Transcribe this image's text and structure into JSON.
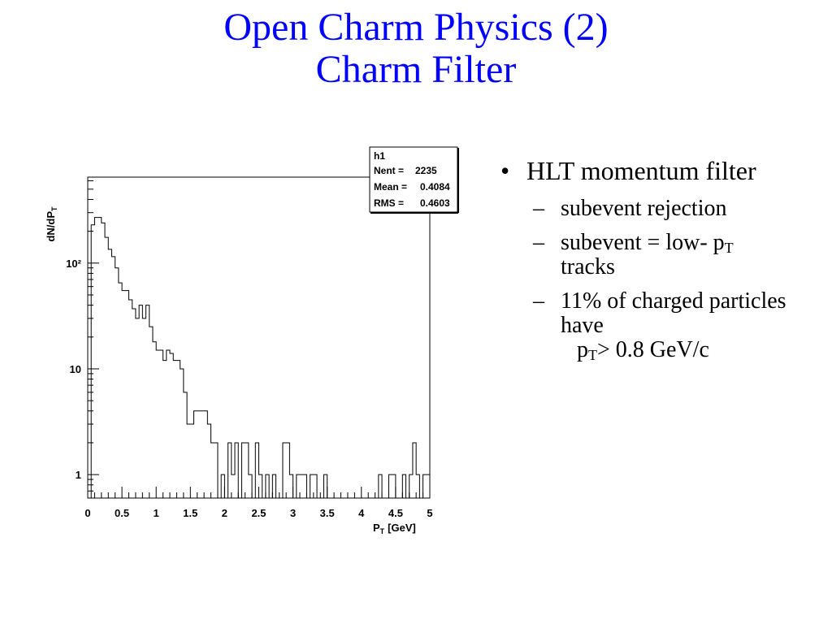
{
  "title": {
    "line1": "Open Charm Physics (2)",
    "line2": "Charm Filter"
  },
  "bullets": {
    "main": "HLT momentum filter",
    "main_glyph": "•",
    "sub_glyph": "–",
    "sub1": "subevent rejection",
    "sub2_pre": "subevent = low- p",
    "sub2_sub": "T",
    "sub2_post": "tracks",
    "sub3_pre": "11% of charged particles have",
    "sub3_p": "p",
    "sub3_sub": "T",
    "sub3_post": "> 0.8 GeV/c"
  },
  "stats_box": {
    "name": "h1",
    "rows": [
      {
        "label": "Nent =",
        "value": "2235"
      },
      {
        "label": "Mean =",
        "value": "0.4084"
      },
      {
        "label": "RMS =",
        "value": "0.4603"
      }
    ]
  },
  "chart_data": {
    "type": "histogram",
    "xlabel": "P",
    "xlabel_sub": "T",
    "xlabel_unit": "[GeV]",
    "ylabel": "dN/dP",
    "ylabel_sub": "T",
    "xlim": [
      0,
      5
    ],
    "ylim": [
      0.6,
      650
    ],
    "yscale": "log",
    "bin_width": 0.05,
    "x_ticks": [
      "0",
      "0.5",
      "1",
      "1.5",
      "2",
      "2.5",
      "3",
      "3.5",
      "4",
      "4.5",
      "5"
    ],
    "y_ticks": [
      {
        "value": 1,
        "label": "1"
      },
      {
        "value": 10,
        "label": "10"
      },
      {
        "value": 100,
        "label": "10²"
      }
    ],
    "values": [
      0,
      230,
      270,
      270,
      240,
      175,
      135,
      115,
      90,
      65,
      55,
      55,
      45,
      37,
      30,
      40,
      30,
      40,
      25,
      18,
      15,
      15,
      12,
      15,
      14,
      12,
      12,
      10,
      6,
      3,
      3,
      4,
      4,
      4,
      4,
      3,
      2,
      2,
      0,
      1,
      0,
      2,
      1,
      2,
      0,
      2,
      2,
      1,
      0,
      2,
      1,
      0,
      1,
      0,
      1,
      0,
      0,
      2,
      2,
      1,
      0,
      1,
      1,
      1,
      0,
      1,
      1,
      0,
      0,
      1,
      0,
      0,
      0,
      0,
      0,
      0,
      0,
      0,
      0,
      0,
      0,
      0,
      0,
      0,
      0,
      1,
      0,
      0,
      1,
      1,
      0,
      0,
      1,
      0,
      1,
      2,
      1,
      0,
      1,
      1
    ]
  }
}
